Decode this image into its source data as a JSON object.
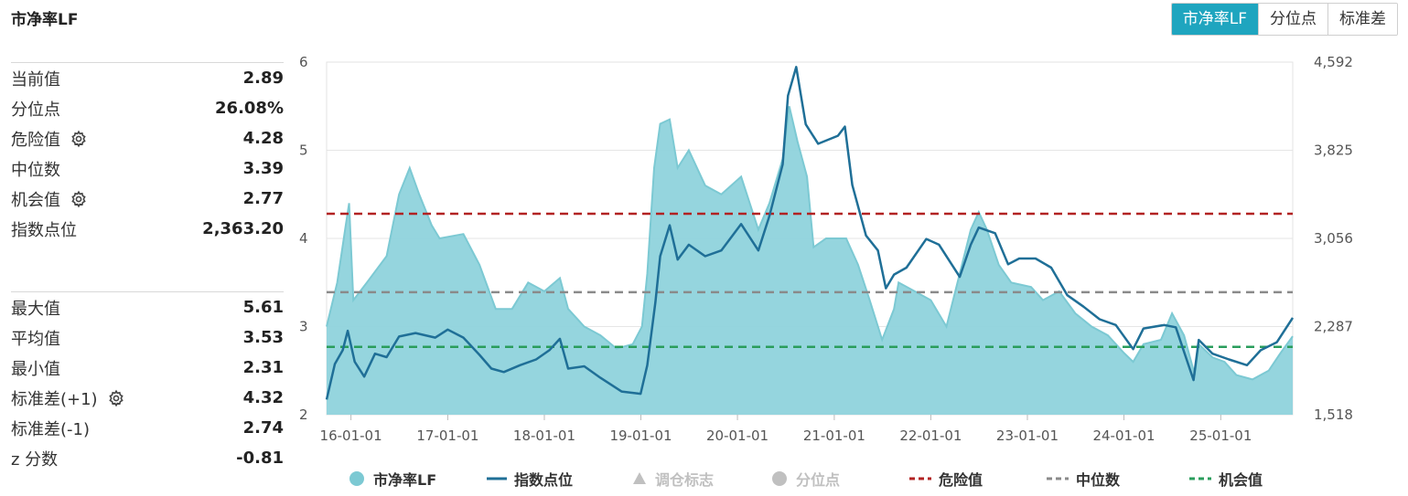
{
  "title": "市净率LF",
  "tabs": [
    {
      "label": "市净率LF",
      "active": true
    },
    {
      "label": "分位点",
      "active": false
    },
    {
      "label": "标准差",
      "active": false
    }
  ],
  "stats_top": [
    {
      "label": "当前值",
      "value": "2.89",
      "gear": false
    },
    {
      "label": "分位点",
      "value": "26.08%",
      "gear": false
    },
    {
      "label": "危险值",
      "value": "4.28",
      "gear": true
    },
    {
      "label": "中位数",
      "value": "3.39",
      "gear": false
    },
    {
      "label": "机会值",
      "value": "2.77",
      "gear": true
    },
    {
      "label": "指数点位",
      "value": "2,363.20",
      "gear": false
    }
  ],
  "stats_bottom": [
    {
      "label": "最大值",
      "value": "5.61",
      "gear": false
    },
    {
      "label": "平均值",
      "value": "3.53",
      "gear": false
    },
    {
      "label": "最小值",
      "value": "2.31",
      "gear": false
    },
    {
      "label": "标准差(+1)",
      "value": "4.32",
      "gear": true
    },
    {
      "label": "标准差(-1)",
      "value": "2.74",
      "gear": false
    },
    {
      "label": "z 分数",
      "value": "-0.81",
      "gear": false
    }
  ],
  "colors": {
    "area_fill": "#8fd3dc",
    "area_line": "#7cc9d3",
    "index_line": "#1f6f97",
    "danger": "#b22222",
    "median": "#8a8a8a",
    "chance": "#2a9d5c",
    "accent": "#1fa5bf"
  },
  "chart_data": {
    "type": "area",
    "x_range": [
      "2015-10-01",
      "2025-09-30"
    ],
    "x_ticks": [
      "16-01-01",
      "17-01-01",
      "18-01-01",
      "19-01-01",
      "20-01-01",
      "21-01-01",
      "22-01-01",
      "23-01-01",
      "24-01-01",
      "25-01-01"
    ],
    "y_left": {
      "min": 2,
      "max": 6,
      "ticks": [
        "2",
        "3",
        "4",
        "5",
        "6"
      ]
    },
    "y_right": {
      "min": 1518,
      "max": 4592,
      "ticks": [
        "1,518",
        "2,287",
        "3,056",
        "3,825",
        "4,592"
      ]
    },
    "reference_lines": [
      {
        "name": "危险值",
        "value": 4.28
      },
      {
        "name": "中位数",
        "value": 3.39
      },
      {
        "name": "机会值",
        "value": 2.77
      }
    ],
    "series": [
      {
        "name": "市净率LF",
        "axis": "left",
        "points": [
          [
            "2015-10-01",
            3.0
          ],
          [
            "2015-11-10",
            3.5
          ],
          [
            "2015-12-10",
            4.1
          ],
          [
            "2015-12-25",
            4.4
          ],
          [
            "2016-01-10",
            3.3
          ],
          [
            "2016-03-01",
            3.5
          ],
          [
            "2016-05-15",
            3.8
          ],
          [
            "2016-07-01",
            4.5
          ],
          [
            "2016-08-10",
            4.8
          ],
          [
            "2016-09-15",
            4.5
          ],
          [
            "2016-11-01",
            4.15
          ],
          [
            "2016-12-01",
            4.0
          ],
          [
            "2017-03-01",
            4.05
          ],
          [
            "2017-05-01",
            3.7
          ],
          [
            "2017-07-01",
            3.2
          ],
          [
            "2017-09-01",
            3.2
          ],
          [
            "2017-11-01",
            3.5
          ],
          [
            "2018-01-01",
            3.4
          ],
          [
            "2018-03-01",
            3.55
          ],
          [
            "2018-04-01",
            3.2
          ],
          [
            "2018-06-01",
            3.0
          ],
          [
            "2018-08-01",
            2.9
          ],
          [
            "2018-10-01",
            2.75
          ],
          [
            "2018-12-01",
            2.8
          ],
          [
            "2019-01-05",
            3.0
          ],
          [
            "2019-01-25",
            3.6
          ],
          [
            "2019-02-20",
            4.8
          ],
          [
            "2019-03-15",
            5.3
          ],
          [
            "2019-04-20",
            5.35
          ],
          [
            "2019-05-20",
            4.8
          ],
          [
            "2019-07-01",
            5.0
          ],
          [
            "2019-09-01",
            4.6
          ],
          [
            "2019-11-01",
            4.5
          ],
          [
            "2020-01-15",
            4.7
          ],
          [
            "2020-03-20",
            4.1
          ],
          [
            "2020-05-01",
            4.4
          ],
          [
            "2020-06-20",
            4.9
          ],
          [
            "2020-07-15",
            5.5
          ],
          [
            "2020-08-15",
            5.1
          ],
          [
            "2020-09-20",
            4.7
          ],
          [
            "2020-10-15",
            3.9
          ],
          [
            "2020-12-01",
            4.0
          ],
          [
            "2021-02-15",
            4.0
          ],
          [
            "2021-04-01",
            3.7
          ],
          [
            "2021-05-15",
            3.3
          ],
          [
            "2021-07-01",
            2.85
          ],
          [
            "2021-08-15",
            3.2
          ],
          [
            "2021-09-01",
            3.5
          ],
          [
            "2021-11-01",
            3.4
          ],
          [
            "2022-01-01",
            3.3
          ],
          [
            "2022-03-01",
            3.0
          ],
          [
            "2022-04-20",
            3.6
          ],
          [
            "2022-06-01",
            4.1
          ],
          [
            "2022-07-01",
            4.3
          ],
          [
            "2022-08-01",
            4.1
          ],
          [
            "2022-09-15",
            3.7
          ],
          [
            "2022-11-01",
            3.5
          ],
          [
            "2023-01-15",
            3.45
          ],
          [
            "2023-03-01",
            3.3
          ],
          [
            "2023-05-01",
            3.4
          ],
          [
            "2023-07-01",
            3.15
          ],
          [
            "2023-09-01",
            3.0
          ],
          [
            "2023-11-01",
            2.9
          ],
          [
            "2024-01-01",
            2.7
          ],
          [
            "2024-02-05",
            2.6
          ],
          [
            "2024-03-15",
            2.8
          ],
          [
            "2024-05-20",
            2.85
          ],
          [
            "2024-07-01",
            3.15
          ],
          [
            "2024-08-15",
            2.9
          ],
          [
            "2024-09-25",
            2.45
          ],
          [
            "2024-10-10",
            2.8
          ],
          [
            "2024-12-01",
            2.65
          ],
          [
            "2025-01-15",
            2.6
          ],
          [
            "2025-03-01",
            2.45
          ],
          [
            "2025-05-01",
            2.4
          ],
          [
            "2025-07-01",
            2.5
          ],
          [
            "2025-08-15",
            2.7
          ],
          [
            "2025-09-30",
            2.89
          ]
        ]
      },
      {
        "name": "指数点位",
        "axis": "right",
        "points": [
          [
            "2015-10-01",
            1650
          ],
          [
            "2015-11-01",
            1960
          ],
          [
            "2015-12-01",
            2080
          ],
          [
            "2015-12-20",
            2250
          ],
          [
            "2016-01-15",
            1980
          ],
          [
            "2016-02-20",
            1850
          ],
          [
            "2016-04-01",
            2050
          ],
          [
            "2016-05-15",
            2020
          ],
          [
            "2016-07-01",
            2200
          ],
          [
            "2016-09-01",
            2230
          ],
          [
            "2016-11-15",
            2190
          ],
          [
            "2017-01-01",
            2260
          ],
          [
            "2017-03-01",
            2190
          ],
          [
            "2017-05-01",
            2040
          ],
          [
            "2017-06-15",
            1920
          ],
          [
            "2017-08-01",
            1890
          ],
          [
            "2017-10-01",
            1950
          ],
          [
            "2017-12-01",
            2000
          ],
          [
            "2018-01-20",
            2080
          ],
          [
            "2018-03-01",
            2180
          ],
          [
            "2018-04-01",
            1920
          ],
          [
            "2018-06-01",
            1940
          ],
          [
            "2018-08-01",
            1840
          ],
          [
            "2018-10-20",
            1720
          ],
          [
            "2018-12-31",
            1700
          ],
          [
            "2019-01-25",
            1950
          ],
          [
            "2019-02-25",
            2500
          ],
          [
            "2019-03-15",
            2900
          ],
          [
            "2019-04-20",
            3170
          ],
          [
            "2019-05-20",
            2870
          ],
          [
            "2019-07-01",
            3000
          ],
          [
            "2019-09-01",
            2900
          ],
          [
            "2019-11-01",
            2950
          ],
          [
            "2020-01-15",
            3180
          ],
          [
            "2020-03-20",
            2950
          ],
          [
            "2020-05-01",
            3250
          ],
          [
            "2020-06-20",
            3700
          ],
          [
            "2020-07-10",
            4300
          ],
          [
            "2020-08-10",
            4550
          ],
          [
            "2020-09-15",
            4050
          ],
          [
            "2020-11-01",
            3880
          ],
          [
            "2021-01-15",
            3950
          ],
          [
            "2021-02-10",
            4030
          ],
          [
            "2021-03-10",
            3520
          ],
          [
            "2021-05-01",
            3080
          ],
          [
            "2021-06-15",
            2950
          ],
          [
            "2021-07-15",
            2620
          ],
          [
            "2021-08-15",
            2740
          ],
          [
            "2021-10-01",
            2800
          ],
          [
            "2021-12-15",
            3050
          ],
          [
            "2022-02-01",
            3000
          ],
          [
            "2022-04-20",
            2720
          ],
          [
            "2022-06-01",
            3000
          ],
          [
            "2022-07-01",
            3150
          ],
          [
            "2022-09-01",
            3100
          ],
          [
            "2022-10-20",
            2830
          ],
          [
            "2022-12-01",
            2880
          ],
          [
            "2023-02-01",
            2880
          ],
          [
            "2023-04-01",
            2800
          ],
          [
            "2023-06-01",
            2560
          ],
          [
            "2023-08-01",
            2460
          ],
          [
            "2023-10-01",
            2350
          ],
          [
            "2023-12-01",
            2300
          ],
          [
            "2024-02-05",
            2090
          ],
          [
            "2024-03-15",
            2270
          ],
          [
            "2024-06-01",
            2300
          ],
          [
            "2024-07-15",
            2280
          ],
          [
            "2024-09-20",
            1820
          ],
          [
            "2024-10-10",
            2170
          ],
          [
            "2024-12-01",
            2050
          ],
          [
            "2025-02-01",
            2000
          ],
          [
            "2025-04-10",
            1950
          ],
          [
            "2025-06-01",
            2080
          ],
          [
            "2025-08-01",
            2150
          ],
          [
            "2025-09-30",
            2363
          ]
        ]
      }
    ],
    "legend": [
      {
        "label": "市净率LF",
        "marker": "circle",
        "color": "#7cc9d3",
        "active": true
      },
      {
        "label": "指数点位",
        "marker": "line",
        "color": "#1f6f97",
        "active": true
      },
      {
        "label": "调仓标志",
        "marker": "triangle",
        "color": "#c0c0c0",
        "active": false
      },
      {
        "label": "分位点",
        "marker": "circle",
        "color": "#c0c0c0",
        "active": false
      },
      {
        "label": "危险值",
        "marker": "dash",
        "color": "#b22222",
        "active": true
      },
      {
        "label": "中位数",
        "marker": "dash",
        "color": "#8a8a8a",
        "active": true
      },
      {
        "label": "机会值",
        "marker": "dash",
        "color": "#2a9d5c",
        "active": true
      }
    ],
    "legend_position": "bottom"
  }
}
